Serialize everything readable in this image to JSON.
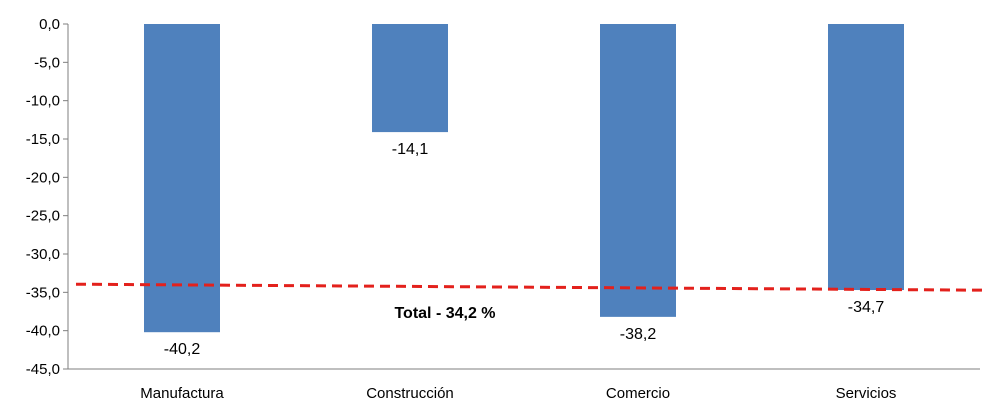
{
  "chart_data": {
    "type": "bar",
    "categories": [
      "Manufactura",
      "Construcción",
      "Comercio",
      "Servicios"
    ],
    "values": [
      -40.2,
      -14.1,
      -38.2,
      -34.7
    ],
    "data_labels": [
      "-40,2",
      "-14,1",
      "-38,2",
      "-34,7"
    ],
    "ylim": [
      -45,
      0
    ],
    "yticks": [
      0,
      -5,
      -10,
      -15,
      -20,
      -25,
      -30,
      -35,
      -40,
      -45
    ],
    "ytick_labels": [
      "0,0",
      "-5,0",
      "-10,0",
      "-15,0",
      "-20,0",
      "-25,0",
      "-30,0",
      "-35,0",
      "-40,0",
      "-45,0"
    ],
    "reference_line": {
      "value": -34.2,
      "label": "Total - 34,2 %",
      "color": "#e3211c",
      "style": "dashed"
    },
    "bar_color": "#4f81bd",
    "grid": false,
    "legend": "none"
  }
}
